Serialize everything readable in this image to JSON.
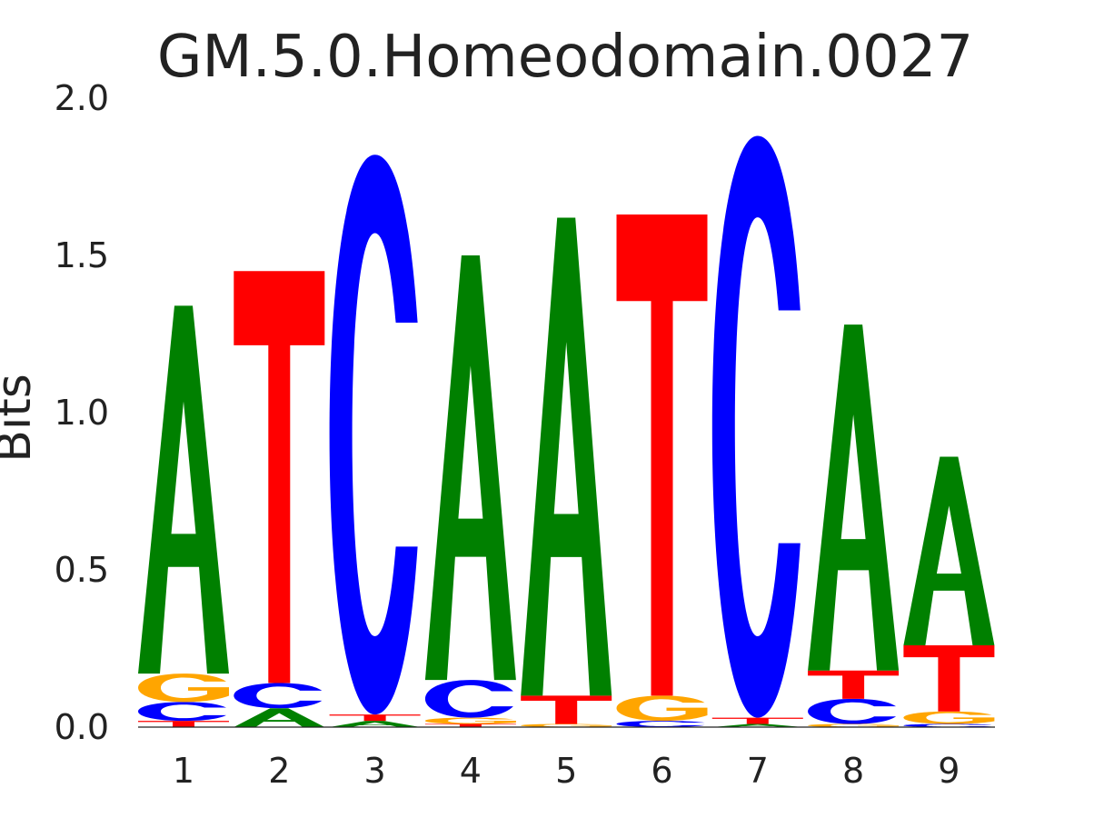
{
  "chart_data": {
    "type": "sequence-logo",
    "title": "GM.5.0.Homeodomain.0027",
    "ylabel": "Bits",
    "xlabel": "",
    "ylim": [
      0,
      2.0
    ],
    "yticks": [
      "0.0",
      "0.5",
      "1.0",
      "1.5",
      "2.0"
    ],
    "grid": false,
    "colors": {
      "A": "#008000",
      "C": "#0000ff",
      "G": "#ffa500",
      "T": "#ff0000"
    },
    "positions": [
      {
        "label": "1",
        "stack": [
          {
            "base": "T",
            "bits": 0.02
          },
          {
            "base": "C",
            "bits": 0.06
          },
          {
            "base": "G",
            "bits": 0.09
          },
          {
            "base": "A",
            "bits": 1.17
          }
        ]
      },
      {
        "label": "2",
        "stack": [
          {
            "base": "A",
            "bits": 0.06
          },
          {
            "base": "C",
            "bits": 0.08
          },
          {
            "base": "T",
            "bits": 1.31
          }
        ]
      },
      {
        "label": "3",
        "stack": [
          {
            "base": "A",
            "bits": 0.02
          },
          {
            "base": "T",
            "bits": 0.02
          },
          {
            "base": "C",
            "bits": 1.78
          }
        ]
      },
      {
        "label": "4",
        "stack": [
          {
            "base": "T",
            "bits": 0.01
          },
          {
            "base": "G",
            "bits": 0.02
          },
          {
            "base": "C",
            "bits": 0.12
          },
          {
            "base": "A",
            "bits": 1.35
          }
        ]
      },
      {
        "label": "5",
        "stack": [
          {
            "base": "G",
            "bits": 0.01
          },
          {
            "base": "T",
            "bits": 0.09
          },
          {
            "base": "A",
            "bits": 1.52
          }
        ]
      },
      {
        "label": "6",
        "stack": [
          {
            "base": "C",
            "bits": 0.02
          },
          {
            "base": "G",
            "bits": 0.08
          },
          {
            "base": "T",
            "bits": 1.53
          }
        ]
      },
      {
        "label": "7",
        "stack": [
          {
            "base": "A",
            "bits": 0.01
          },
          {
            "base": "T",
            "bits": 0.02
          },
          {
            "base": "C",
            "bits": 1.85
          }
        ]
      },
      {
        "label": "8",
        "stack": [
          {
            "base": "G",
            "bits": 0.01
          },
          {
            "base": "C",
            "bits": 0.08
          },
          {
            "base": "T",
            "bits": 0.09
          },
          {
            "base": "A",
            "bits": 1.1
          }
        ]
      },
      {
        "label": "9",
        "stack": [
          {
            "base": "C",
            "bits": 0.01
          },
          {
            "base": "G",
            "bits": 0.04
          },
          {
            "base": "T",
            "bits": 0.21
          },
          {
            "base": "A",
            "bits": 0.6
          }
        ]
      }
    ]
  }
}
